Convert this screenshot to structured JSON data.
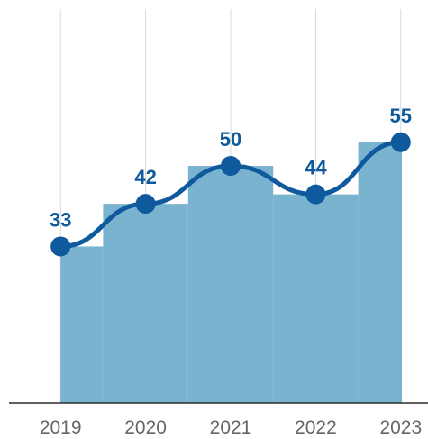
{
  "chart_data": {
    "type": "bar",
    "categories": [
      "2019",
      "2020",
      "2021",
      "2022",
      "2023"
    ],
    "series": [
      {
        "values": [
          33,
          42,
          50,
          44,
          55
        ]
      }
    ],
    "overlay": "smoothed line with markers over step bars",
    "data_labels": [
      "33",
      "42",
      "50",
      "44",
      "55"
    ],
    "ylim": [
      0,
      85
    ],
    "grid": "vertical",
    "colors": {
      "bar": "#7ab3d0",
      "line": "#0e5a9c",
      "label": "#0e5a9c"
    }
  }
}
